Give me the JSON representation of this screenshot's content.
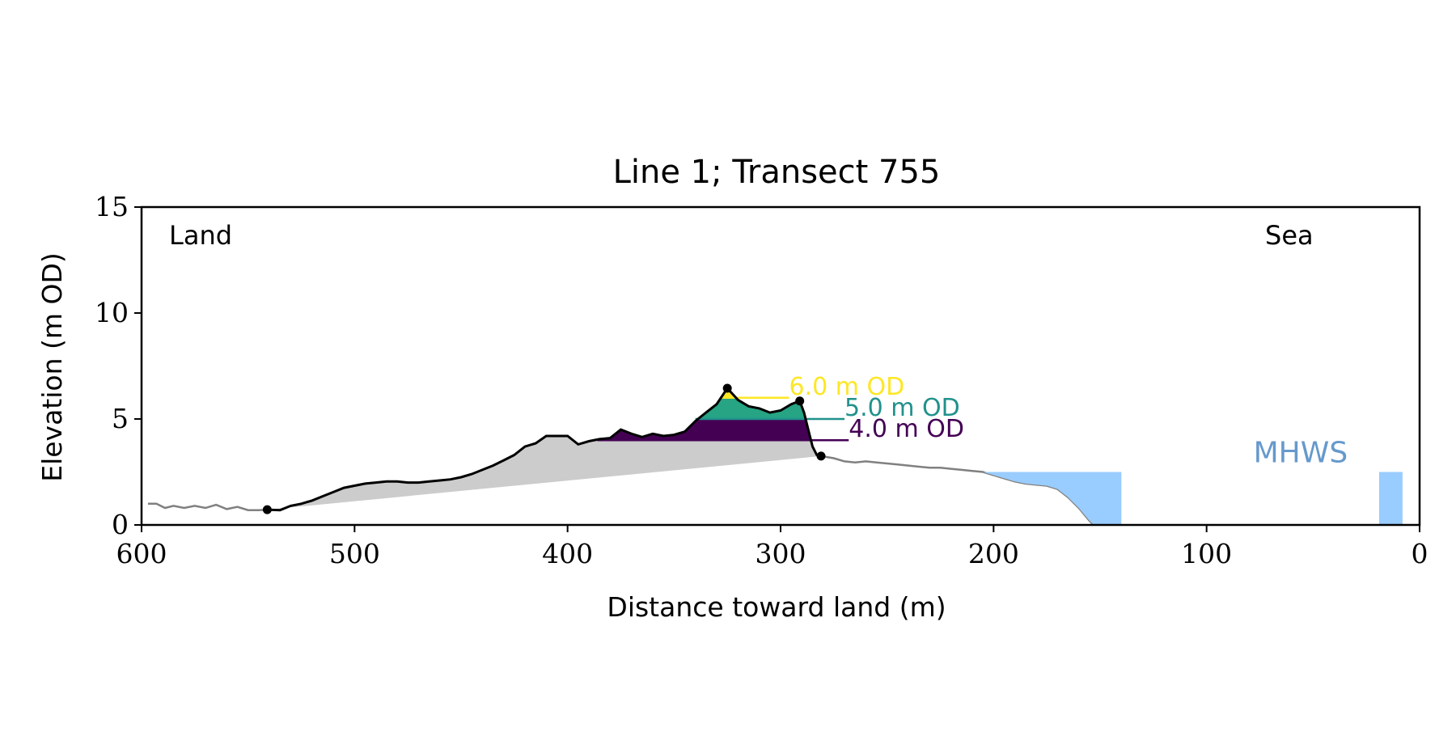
{
  "chart_data": {
    "type": "line",
    "title": "Line 1; Transect 755",
    "xlabel": "Distance toward land (m)",
    "ylabel": "Elevation (m OD)",
    "xlim": [
      600,
      0
    ],
    "ylim": [
      0,
      15
    ],
    "x_ticks": [
      600,
      500,
      400,
      300,
      200,
      100,
      0
    ],
    "y_ticks": [
      0,
      5,
      10,
      15
    ],
    "grid": false,
    "annotations": {
      "land": "Land",
      "sea": "Sea",
      "mhws": "MHWS"
    },
    "colors": {
      "profile_full": "#808080",
      "dune_profile": "#000000",
      "below_level_fill": "#cccccc",
      "od4": "#440154",
      "od5": "#21918c",
      "od6": "#fde725",
      "od5_fill": "#26a483",
      "mhws": "#99ccff",
      "mhws_text": "#6699cc"
    },
    "profile": {
      "x": [
        597,
        593,
        589,
        585,
        580,
        575,
        570,
        565,
        560,
        555,
        550,
        545,
        541,
        535,
        530,
        525,
        520,
        515,
        510,
        505,
        500,
        495,
        490,
        485,
        480,
        475,
        470,
        465,
        460,
        455,
        450,
        445,
        440,
        435,
        430,
        425,
        420,
        415,
        410,
        405,
        400,
        395,
        390,
        385,
        380,
        375,
        370,
        365,
        360,
        355,
        350,
        345,
        340,
        335,
        330,
        325,
        320,
        315,
        310,
        305,
        300,
        295,
        291,
        289,
        287,
        285,
        283,
        281,
        275,
        270,
        265,
        260,
        255,
        250,
        245,
        240,
        235,
        230,
        225,
        220,
        215,
        210,
        205,
        200,
        195,
        190,
        185,
        180,
        175,
        170,
        165,
        160,
        155,
        153
      ],
      "y": [
        1.0,
        1.0,
        0.8,
        0.9,
        0.8,
        0.9,
        0.8,
        0.95,
        0.75,
        0.85,
        0.7,
        0.7,
        0.72,
        0.7,
        0.9,
        1.0,
        1.15,
        1.35,
        1.55,
        1.75,
        1.85,
        1.95,
        2.0,
        2.05,
        2.05,
        2.0,
        2.0,
        2.05,
        2.1,
        2.15,
        2.25,
        2.4,
        2.6,
        2.8,
        3.05,
        3.3,
        3.7,
        3.85,
        4.2,
        4.2,
        4.2,
        3.8,
        3.95,
        4.05,
        4.1,
        4.5,
        4.3,
        4.15,
        4.3,
        4.2,
        4.25,
        4.4,
        4.9,
        5.3,
        5.7,
        6.45,
        5.9,
        5.6,
        5.5,
        5.3,
        5.4,
        5.7,
        5.85,
        5.3,
        4.5,
        3.7,
        3.3,
        3.25,
        3.15,
        3.0,
        2.95,
        3.0,
        2.95,
        2.9,
        2.85,
        2.8,
        2.75,
        2.7,
        2.7,
        2.65,
        2.6,
        2.55,
        2.5,
        2.35,
        2.2,
        2.05,
        1.95,
        1.9,
        1.85,
        1.7,
        1.3,
        0.8,
        0.2,
        0.0
      ]
    },
    "dune_start_index": 12,
    "dune_end_index": 67,
    "markers": [
      {
        "x": 541,
        "y": 0.72
      },
      {
        "x": 325,
        "y": 6.45
      },
      {
        "x": 291,
        "y": 5.85
      },
      {
        "x": 281,
        "y": 3.25
      }
    ],
    "dune_base_line": {
      "x": [
        541,
        281
      ],
      "y": [
        0.72,
        3.25
      ]
    },
    "od_levels": [
      {
        "level": 4.0,
        "label": "4.0 m OD",
        "x_from": 386,
        "x_to": 268
      },
      {
        "level": 5.0,
        "label": "5.0 m OD",
        "x_from": 340,
        "x_to": 270
      },
      {
        "level": 6.0,
        "label": "6.0 m OD",
        "x_from": 328,
        "x_to": 296
      }
    ],
    "mhws": {
      "level": 2.5,
      "label": "MHWS",
      "regions": [
        {
          "x_from": 210,
          "x_to": 140
        },
        {
          "x_from": 19,
          "x_to": 8
        }
      ]
    }
  }
}
